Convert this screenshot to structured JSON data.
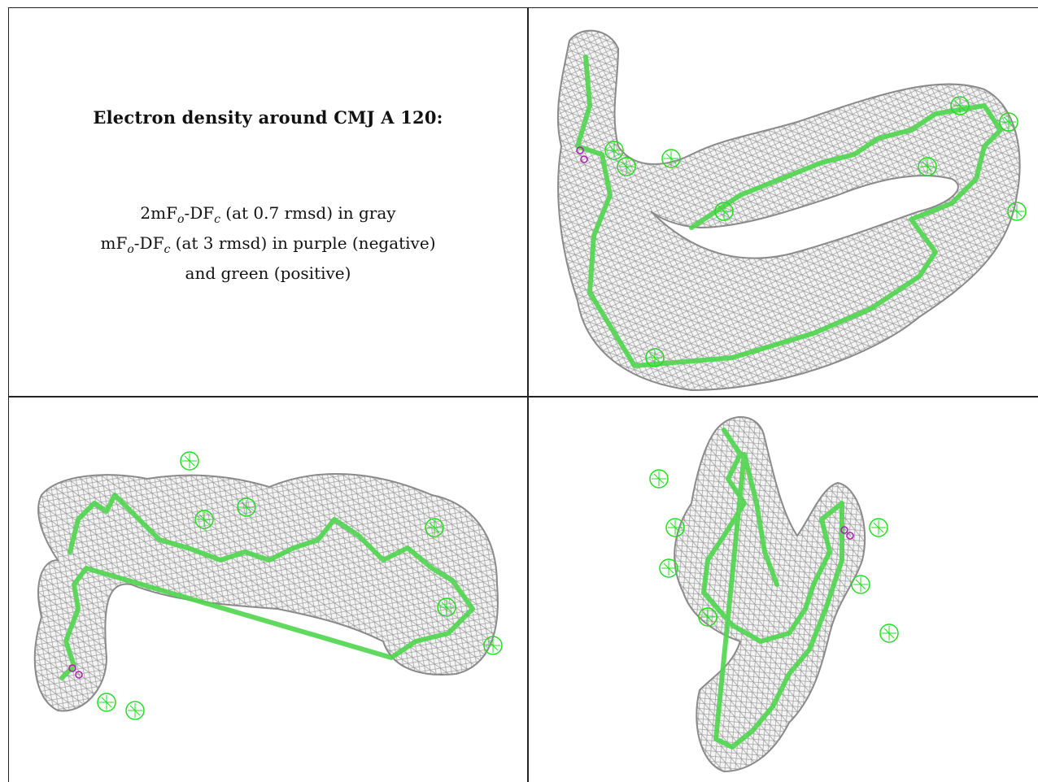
{
  "caption": {
    "title": "Electron density around CMJ A 120:",
    "lines": [
      {
        "prefix": "2mF",
        "sub1": "o",
        "mid": "-DF",
        "sub2": "c",
        "suffix": " (at 0.7 rmsd) in gray"
      },
      {
        "prefix": "mF",
        "sub1": "o",
        "mid": "-DF",
        "sub2": "c",
        "suffix": " (at 3 rmsd) in purple (negative)"
      },
      {
        "prefix": "",
        "sub1": "",
        "mid": "",
        "sub2": "",
        "suffix": "and green (positive)"
      }
    ]
  },
  "colors": {
    "mesh_gray": "#9a9a9a",
    "model_green": "#4ed64e",
    "positive_green": "#22dd22",
    "negative_purple": "#b020b0",
    "border": "#222222"
  },
  "views": [
    {
      "name": "view-top-right"
    },
    {
      "name": "view-bottom-left"
    },
    {
      "name": "view-bottom-right"
    }
  ]
}
